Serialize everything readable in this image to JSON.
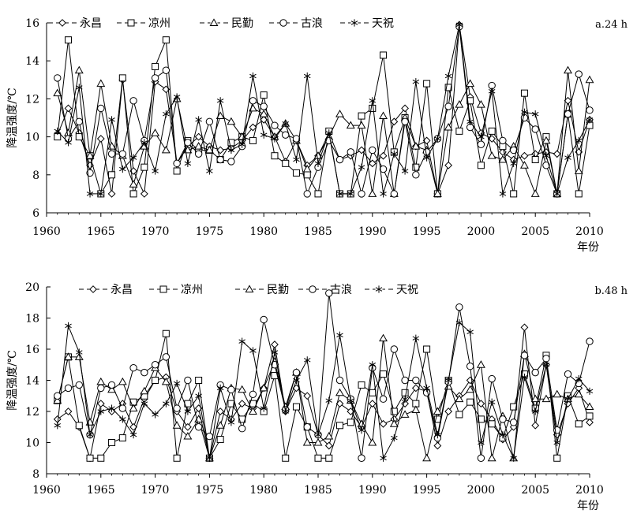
{
  "chart_data": [
    {
      "type": "line",
      "panel_label": "a.24 h",
      "ylabel": "降温强度/℃",
      "xlabel": "年份",
      "xlim": [
        1960,
        2010
      ],
      "ylim": [
        6,
        16
      ],
      "xticks": [
        1960,
        1965,
        1970,
        1975,
        1980,
        1985,
        1990,
        1995,
        2000,
        2005,
        2010
      ],
      "yticks": [
        6,
        8,
        10,
        12,
        14,
        16
      ],
      "legend_position": "top",
      "x": [
        1961,
        1962,
        1963,
        1964,
        1965,
        1966,
        1967,
        1968,
        1969,
        1970,
        1971,
        1972,
        1973,
        1974,
        1975,
        1976,
        1977,
        1978,
        1979,
        1980,
        1981,
        1982,
        1983,
        1984,
        1985,
        1986,
        1987,
        1988,
        1989,
        1990,
        1991,
        1992,
        1993,
        1994,
        1995,
        1996,
        1997,
        1998,
        1999,
        2000,
        2001,
        2002,
        2003,
        2004,
        2005,
        2006,
        2007,
        2008,
        2009,
        2010
      ],
      "series": [
        {
          "name": "永昌",
          "marker": "diamond",
          "values": [
            10.1,
            11.5,
            10.2,
            8.5,
            9.9,
            7.0,
            13.0,
            8.2,
            7.0,
            12.9,
            12.5,
            8.6,
            9.5,
            10.0,
            9.5,
            9.3,
            9.4,
            9.8,
            10.5,
            10.9,
            10.0,
            8.7,
            9.8,
            8.5,
            9.0,
            10.2,
            8.8,
            9.0,
            9.3,
            8.6,
            9.0,
            10.8,
            11.5,
            9.5,
            9.8,
            7.0,
            8.5,
            15.9,
            12.1,
            10.2,
            9.9,
            9.2,
            8.8,
            9.0,
            9.1,
            9.2,
            9.1,
            11.9,
            9.2,
            10.9
          ]
        },
        {
          "name": "凉州",
          "marker": "square",
          "values": [
            10.0,
            15.1,
            10.0,
            9.0,
            7.0,
            8.0,
            13.1,
            7.0,
            8.4,
            13.7,
            15.1,
            8.2,
            9.8,
            9.3,
            9.3,
            8.8,
            9.7,
            10.0,
            9.8,
            12.2,
            9.0,
            8.6,
            8.1,
            8.0,
            7.0,
            10.3,
            7.0,
            7.0,
            11.1,
            11.5,
            14.3,
            9.2,
            11.0,
            8.4,
            12.8,
            7.0,
            12.6,
            10.3,
            11.9,
            8.5,
            10.3,
            9.5,
            7.0,
            12.3,
            8.8,
            10.0,
            7.0,
            11.2,
            7.0,
            10.6
          ]
        },
        {
          "name": "民勤",
          "marker": "triangle",
          "values": [
            12.3,
            10.2,
            13.5,
            9.0,
            12.8,
            9.5,
            9.0,
            7.5,
            9.5,
            10.2,
            9.3,
            12.0,
            9.3,
            9.5,
            9.3,
            11.1,
            10.8,
            10.0,
            11.5,
            11.2,
            10.0,
            10.7,
            9.8,
            8.3,
            9.0,
            10.0,
            11.2,
            10.6,
            10.6,
            7.0,
            11.1,
            7.0,
            11.0,
            9.5,
            9.3,
            7.0,
            10.5,
            11.7,
            12.8,
            11.7,
            9.0,
            8.8,
            9.5,
            8.5,
            7.0,
            9.8,
            7.0,
            13.5,
            8.2,
            13.0
          ]
        },
        {
          "name": "古浪",
          "marker": "circle",
          "values": [
            13.1,
            9.9,
            10.8,
            8.1,
            11.5,
            9.1,
            9.1,
            11.9,
            9.8,
            13.1,
            13.5,
            8.6,
            9.7,
            9.1,
            10.8,
            8.8,
            8.7,
            9.5,
            11.9,
            11.6,
            10.6,
            10.1,
            9.9,
            7.0,
            8.4,
            9.8,
            8.8,
            9.2,
            7.0,
            9.3,
            8.3,
            7.0,
            10.8,
            8.0,
            9.2,
            9.9,
            11.6,
            15.8,
            10.5,
            9.6,
            12.7,
            9.8,
            9.3,
            11.0,
            10.4,
            8.5,
            7.0,
            11.2,
            13.3,
            11.4
          ]
        },
        {
          "name": "天祝",
          "marker": "asterisk",
          "values": [
            10.3,
            9.7,
            12.6,
            7.0,
            7.0,
            10.9,
            8.3,
            8.9,
            9.7,
            8.2,
            11.2,
            12.1,
            8.6,
            10.9,
            8.2,
            11.9,
            9.3,
            9.6,
            13.2,
            10.1,
            9.9,
            10.7,
            8.8,
            13.2,
            8.6,
            10.2,
            7.0,
            7.0,
            8.4,
            11.9,
            7.0,
            9.1,
            8.2,
            12.9,
            8.9,
            9.9,
            13.2,
            15.9,
            10.8,
            10.0,
            12.4,
            7.0,
            8.6,
            11.3,
            11.2,
            9.0,
            7.0,
            8.9,
            9.8,
            10.9
          ]
        }
      ]
    },
    {
      "type": "line",
      "panel_label": "b.48 h",
      "ylabel": "降温强度/℃",
      "xlabel": "年份",
      "xlim": [
        1960,
        2010
      ],
      "ylim": [
        8,
        20
      ],
      "xticks": [
        1960,
        1965,
        1970,
        1975,
        1980,
        1985,
        1990,
        1995,
        2000,
        2005,
        2010
      ],
      "yticks": [
        8,
        10,
        12,
        14,
        16,
        18,
        20
      ],
      "legend_position": "top",
      "x": [
        1961,
        1962,
        1963,
        1964,
        1965,
        1966,
        1967,
        1968,
        1969,
        1970,
        1971,
        1972,
        1973,
        1974,
        1975,
        1976,
        1977,
        1978,
        1979,
        1980,
        1981,
        1982,
        1983,
        1984,
        1985,
        1986,
        1987,
        1988,
        1989,
        1990,
        1991,
        1992,
        1993,
        1994,
        1995,
        1996,
        1997,
        1998,
        1999,
        2000,
        2001,
        2002,
        2003,
        2004,
        2005,
        2006,
        2007,
        2008,
        2009,
        2010
      ],
      "series": [
        {
          "name": "永昌",
          "marker": "diamond",
          "values": [
            11.5,
            12.0,
            11.0,
            9.0,
            12.5,
            12.0,
            12.5,
            11.0,
            12.8,
            14.0,
            14.2,
            12.0,
            11.0,
            12.2,
            9.0,
            12.0,
            11.5,
            12.5,
            12.2,
            13.5,
            16.3,
            12.0,
            13.5,
            13.0,
            10.5,
            9.8,
            12.5,
            12.0,
            11.0,
            12.5,
            11.2,
            11.5,
            12.5,
            13.5,
            13.3,
            9.8,
            12.0,
            13.0,
            14.0,
            12.5,
            11.5,
            10.2,
            11.0,
            17.4,
            11.1,
            15.0,
            10.5,
            12.5,
            13.5,
            11.3
          ]
        },
        {
          "name": "凉州",
          "marker": "square",
          "values": [
            12.7,
            15.5,
            11.1,
            9.0,
            9.0,
            10.0,
            10.3,
            12.6,
            13.0,
            14.0,
            17.0,
            9.0,
            12.5,
            14.0,
            9.0,
            10.2,
            12.5,
            11.5,
            12.5,
            12.0,
            14.3,
            9.0,
            12.3,
            11.0,
            9.0,
            9.0,
            11.1,
            11.3,
            13.7,
            13.2,
            14.4,
            12.0,
            13.2,
            12.5,
            16.0,
            11.5,
            14.0,
            11.8,
            12.6,
            11.5,
            11.2,
            10.3,
            12.3,
            14.4,
            12.2,
            15.6,
            9.0,
            13.0,
            11.2,
            11.7
          ]
        },
        {
          "name": "民勤",
          "marker": "triangle",
          "values": [
            12.7,
            15.5,
            15.5,
            11.3,
            13.9,
            13.4,
            13.9,
            12.2,
            13.3,
            14.8,
            13.9,
            11.1,
            10.4,
            11.5,
            9.0,
            11.1,
            13.5,
            13.4,
            12.0,
            13.5,
            15.2,
            12.3,
            14.5,
            10.0,
            10.0,
            10.4,
            13.2,
            12.7,
            11.2,
            10.0,
            16.7,
            11.2,
            11.8,
            12.1,
            9.0,
            12.0,
            13.6,
            12.8,
            13.4,
            15.0,
            9.0,
            11.7,
            9.0,
            15.7,
            12.8,
            12.8,
            13.1,
            12.8,
            13.1,
            12.3
          ]
        },
        {
          "name": "古浪",
          "marker": "circle",
          "values": [
            13.0,
            13.5,
            13.7,
            10.5,
            13.5,
            13.7,
            12.2,
            14.8,
            14.5,
            15.0,
            15.5,
            12.2,
            14.0,
            11.0,
            10.4,
            13.7,
            13.4,
            10.9,
            13.1,
            17.9,
            15.0,
            12.1,
            14.5,
            11.0,
            10.5,
            19.6,
            14.0,
            12.8,
            9.0,
            14.8,
            12.8,
            16.0,
            14.0,
            14.0,
            13.2,
            10.3,
            13.9,
            18.7,
            14.9,
            9.0,
            14.1,
            11.5,
            11.3,
            15.6,
            14.5,
            15.4,
            10.8,
            14.4,
            13.8,
            16.5
          ]
        },
        {
          "name": "天祝",
          "marker": "asterisk",
          "values": [
            11.1,
            17.5,
            15.8,
            10.5,
            12.0,
            12.2,
            11.5,
            10.5,
            12.5,
            11.8,
            12.5,
            13.8,
            12.0,
            13.0,
            9.0,
            13.5,
            11.3,
            16.5,
            15.9,
            12.2,
            15.8,
            12.0,
            14.0,
            15.3,
            10.5,
            12.7,
            16.9,
            12.7,
            10.8,
            15.0,
            9.0,
            10.3,
            12.8,
            16.7,
            13.5,
            10.5,
            14.0,
            17.7,
            17.1,
            10.0,
            12.6,
            10.5,
            9.0,
            14.2,
            12.0,
            15.0,
            10.0,
            12.8,
            14.1,
            13.3
          ]
        }
      ]
    }
  ]
}
